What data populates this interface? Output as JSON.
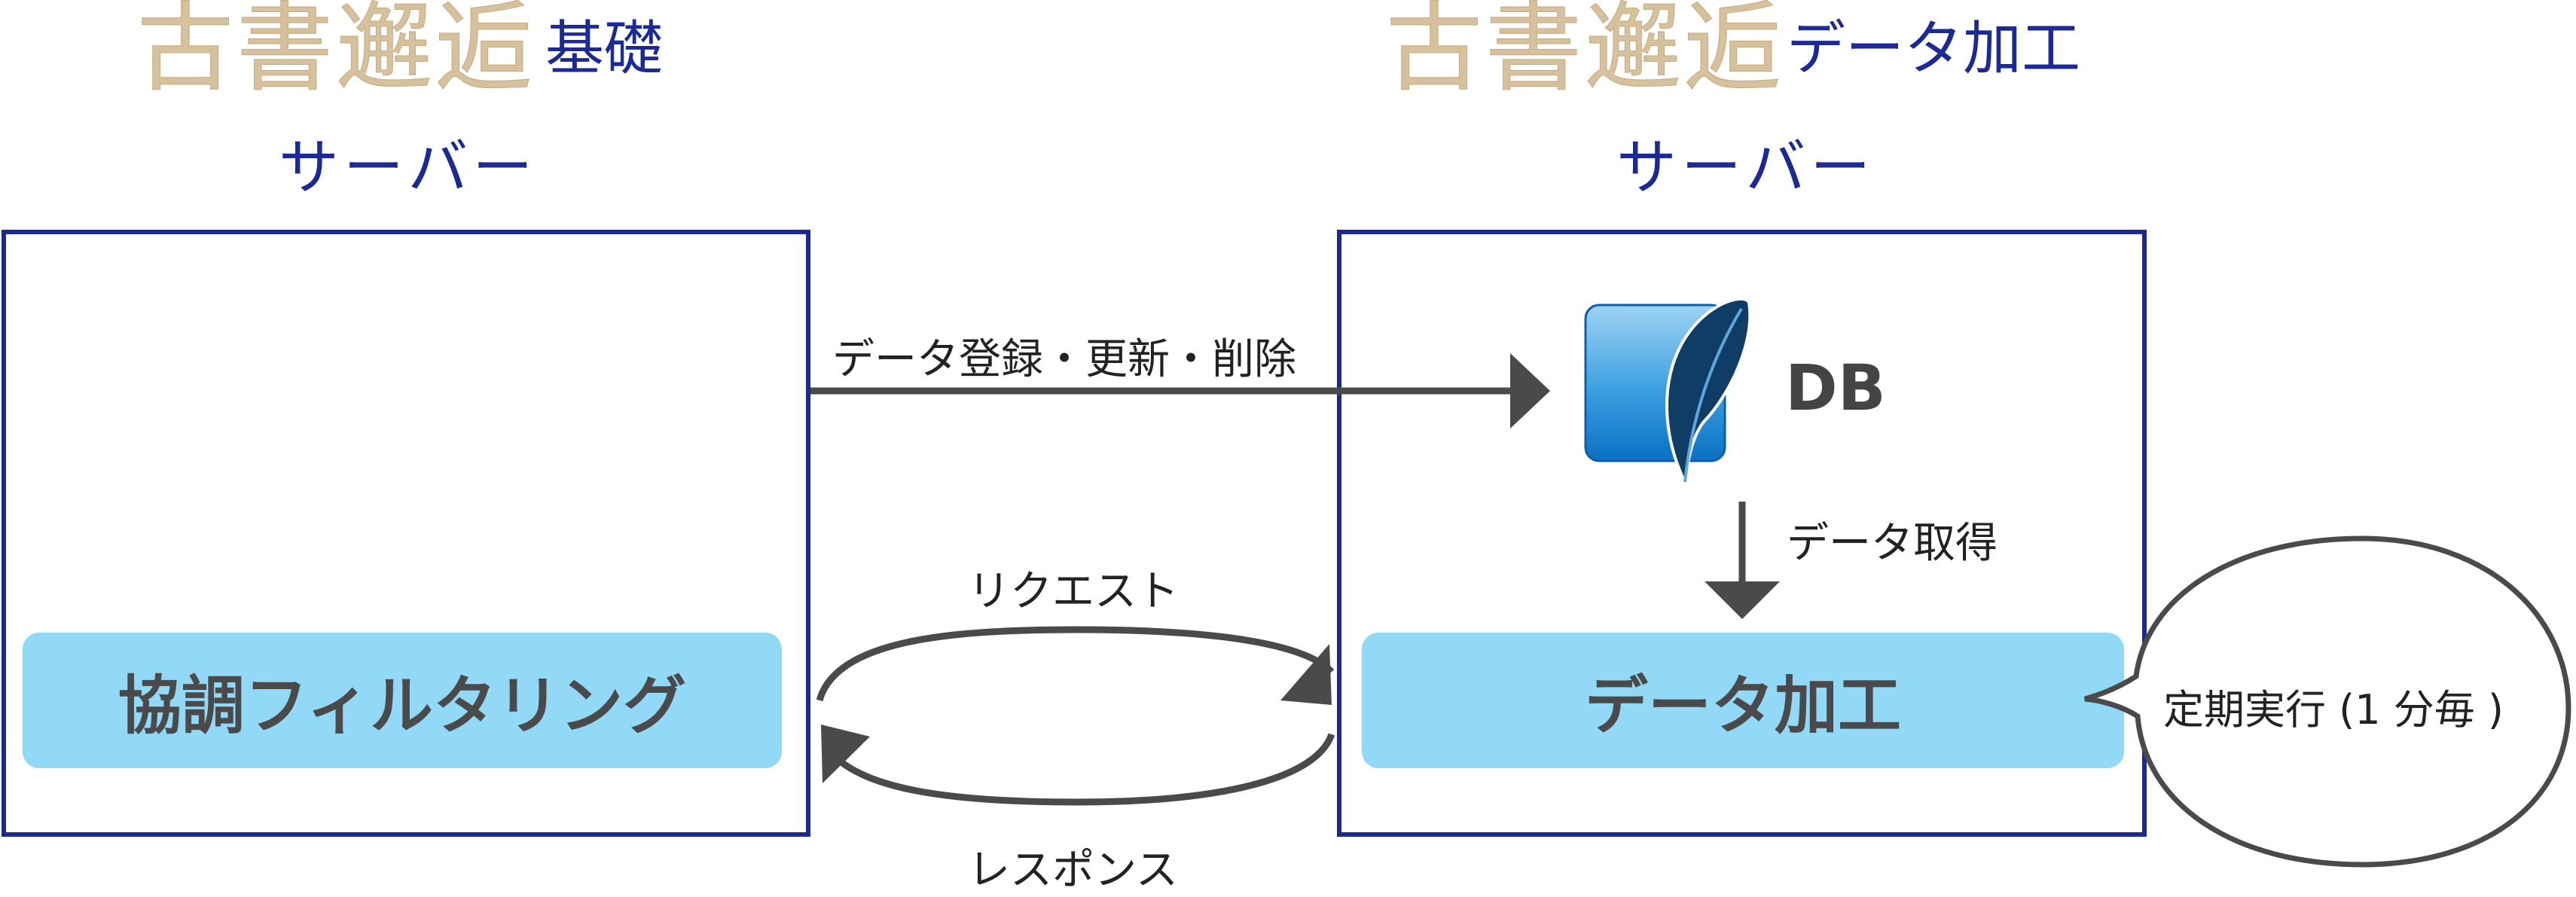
{
  "left_server": {
    "brand": "古書邂逅",
    "name": "基礎",
    "subtitle": "サーバー",
    "process_label": "協調フィルタリング"
  },
  "right_server": {
    "brand": "古書邂逅",
    "name": "データ加工",
    "subtitle": "サーバー",
    "db_label": "DB",
    "process_label": "データ加工"
  },
  "edges": {
    "write": "データ登録・更新・削除",
    "request": "リクエスト",
    "response": "レスポンス",
    "fetch": "データ取得"
  },
  "schedule": {
    "label": "定期実行 (1 分毎 )"
  },
  "colors": {
    "brand": "#d6c19c",
    "title_blue": "#1b2a96",
    "box_border": "#1a2a8e",
    "process_fill": "#91d9f6",
    "arrow": "#4a4a4a"
  }
}
